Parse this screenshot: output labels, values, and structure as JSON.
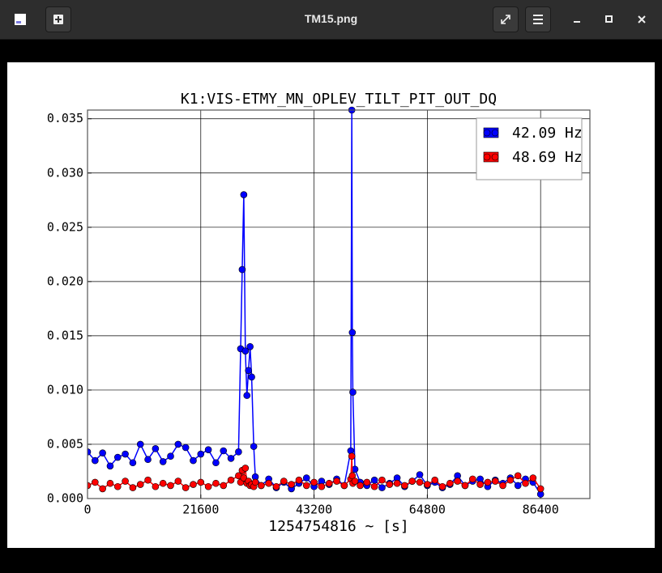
{
  "window": {
    "title": "TM15.png"
  },
  "chart_data": {
    "type": "line",
    "title": "K1:VIS-ETMY_MN_OPLEV_TILT_PIT_OUT_DQ",
    "x_label": "1254754816 ~ [s]",
    "x": [
      0,
      1440,
      2880,
      4320,
      5760,
      7200,
      8640,
      10080,
      11520,
      12960,
      14400,
      15840,
      17280,
      18720,
      20160,
      21600,
      23040,
      24480,
      25920,
      27360,
      28800,
      29200,
      29500,
      29800,
      30100,
      30400,
      30700,
      31000,
      31300,
      31700,
      32000,
      33120,
      34560,
      36000,
      37440,
      38880,
      40320,
      41760,
      43200,
      44640,
      46080,
      47520,
      48960,
      50200,
      50400,
      50500,
      50600,
      51000,
      52000,
      53280,
      54720,
      56160,
      57600,
      59040,
      60480,
      61920,
      63360,
      64800,
      66240,
      67680,
      69120,
      70560,
      72000,
      73440,
      74880,
      76320,
      77760,
      79200,
      80640,
      82080,
      83520,
      84960,
      86400
    ],
    "series": [
      {
        "name": "42.09 Hz",
        "color": "#0000ff",
        "values": [
          0.0043,
          0.0035,
          0.0042,
          0.003,
          0.0038,
          0.0041,
          0.0033,
          0.005,
          0.0036,
          0.0046,
          0.0034,
          0.0039,
          0.005,
          0.0047,
          0.0035,
          0.0041,
          0.0045,
          0.0033,
          0.0044,
          0.0037,
          0.0043,
          0.0138,
          0.0211,
          0.028,
          0.0136,
          0.0095,
          0.0118,
          0.014,
          0.0112,
          0.0048,
          0.002,
          0.0012,
          0.0018,
          0.001,
          0.0015,
          0.0009,
          0.0014,
          0.0019,
          0.0011,
          0.0016,
          0.0013,
          0.0018,
          0.0012,
          0.0044,
          0.0358,
          0.0153,
          0.0098,
          0.0027,
          0.0015,
          0.0012,
          0.0017,
          0.001,
          0.0014,
          0.0019,
          0.0011,
          0.0016,
          0.0022,
          0.0012,
          0.0015,
          0.001,
          0.0013,
          0.0021,
          0.0012,
          0.0016,
          0.0018,
          0.0011,
          0.0017,
          0.0014,
          0.0019,
          0.0012,
          0.0018,
          0.0015,
          0.0004
        ]
      },
      {
        "name": "48.69 Hz",
        "color": "#ff0000",
        "values": [
          0.0012,
          0.0015,
          0.0009,
          0.0014,
          0.0011,
          0.0016,
          0.001,
          0.0013,
          0.0017,
          0.0011,
          0.0014,
          0.0012,
          0.0016,
          0.001,
          0.0013,
          0.0015,
          0.0011,
          0.0014,
          0.0012,
          0.0017,
          0.0021,
          0.0015,
          0.0026,
          0.0019,
          0.0028,
          0.0014,
          0.0016,
          0.0012,
          0.0013,
          0.0011,
          0.0015,
          0.0012,
          0.0014,
          0.0011,
          0.0016,
          0.0013,
          0.0017,
          0.0012,
          0.0015,
          0.0011,
          0.0014,
          0.0016,
          0.0012,
          0.0018,
          0.0039,
          0.0021,
          0.0014,
          0.0016,
          0.0012,
          0.0015,
          0.0011,
          0.0017,
          0.0013,
          0.0014,
          0.0012,
          0.0016,
          0.0015,
          0.0013,
          0.0017,
          0.0011,
          0.0014,
          0.0016,
          0.0012,
          0.0018,
          0.0013,
          0.0015,
          0.0016,
          0.0012,
          0.0017,
          0.0021,
          0.0014,
          0.0019,
          0.0009
        ]
      }
    ],
    "xlim": [
      0,
      95800
    ],
    "xticks": [
      0,
      21600,
      43200,
      64800,
      86400
    ],
    "ylim": [
      0,
      0.0358
    ],
    "yticks": [
      {
        "value": 0,
        "label": "0.000"
      },
      {
        "value": 0.005,
        "label": "0.005"
      },
      {
        "value": 0.01,
        "label": "0.010"
      },
      {
        "value": 0.015,
        "label": "0.015"
      },
      {
        "value": 0.02,
        "label": "0.020"
      },
      {
        "value": 0.025,
        "label": "0.025"
      },
      {
        "value": 0.03,
        "label": "0.030"
      },
      {
        "value": 0.035,
        "label": "0.035"
      }
    ],
    "grid": true,
    "legend": "upper-right"
  }
}
